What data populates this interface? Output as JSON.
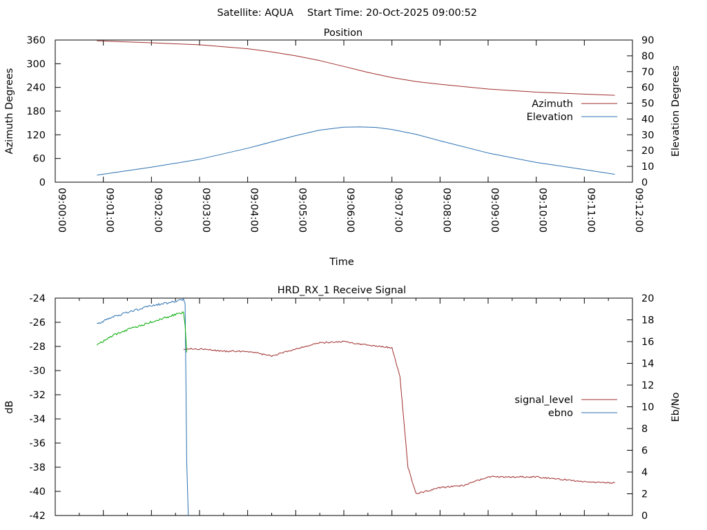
{
  "header": {
    "satellite_label": "Satellite: AQUA",
    "start_time_label": "Start Time: 20-Oct-2025 09:00:52"
  },
  "chart_data": [
    {
      "type": "line",
      "title": "Position",
      "xlabel": "Time",
      "ylabel": "Azimuth Degrees",
      "y2label": "Elevation Degrees",
      "xlim": [
        "09:00:00",
        "09:12:00"
      ],
      "x_ticks": [
        "09:00:00",
        "09:01:00",
        "09:02:00",
        "09:03:00",
        "09:04:00",
        "09:05:00",
        "09:06:00",
        "09:07:00",
        "09:08:00",
        "09:09:00",
        "09:10:00",
        "09:11:00",
        "09:12:00"
      ],
      "ylim": [
        0,
        360
      ],
      "y_ticks": [
        "0",
        "60",
        "120",
        "180",
        "240",
        "300",
        "360"
      ],
      "y2lim": [
        0,
        90
      ],
      "y2_ticks": [
        "0",
        "10",
        "20",
        "30",
        "40",
        "50",
        "60",
        "70",
        "80",
        "90"
      ],
      "grid": false,
      "legend_position": "right",
      "series": [
        {
          "name": "Azimuth",
          "axis": "left",
          "color": "#a02c2c",
          "x": [
            "09:00:52",
            "09:02:00",
            "09:03:00",
            "09:04:00",
            "09:04:30",
            "09:05:00",
            "09:05:30",
            "09:06:00",
            "09:06:30",
            "09:07:00",
            "09:07:30",
            "09:08:00",
            "09:09:00",
            "09:10:00",
            "09:11:00",
            "09:11:38"
          ],
          "values": [
            358,
            353,
            348,
            338,
            330,
            320,
            308,
            293,
            278,
            265,
            255,
            248,
            236,
            228,
            223,
            220
          ]
        },
        {
          "name": "Elevation",
          "axis": "right",
          "color": "#2a6fb0",
          "x": [
            "09:00:52",
            "09:02:00",
            "09:03:00",
            "09:04:00",
            "09:05:00",
            "09:05:30",
            "09:06:00",
            "09:06:20",
            "09:06:40",
            "09:07:00",
            "09:07:30",
            "09:08:00",
            "09:09:00",
            "09:10:00",
            "09:11:00",
            "09:11:38"
          ],
          "values": [
            4.5,
            9.5,
            14.5,
            21.5,
            29.5,
            33,
            34.8,
            35,
            34.7,
            33.4,
            30.3,
            26.2,
            18.5,
            12.5,
            8,
            5
          ]
        }
      ]
    },
    {
      "type": "line",
      "title": "HRD_RX_1 Receive Signal",
      "ylabel": "dB",
      "y2label": "Eb/No",
      "xlim": [
        "09:00:00",
        "09:12:00"
      ],
      "ylim": [
        -42,
        -24
      ],
      "y_ticks": [
        "-24",
        "-26",
        "-28",
        "-30",
        "-32",
        "-34",
        "-36",
        "-38",
        "-40",
        "-42"
      ],
      "y2lim": [
        0,
        20
      ],
      "y2_ticks": [
        "0",
        "2",
        "4",
        "6",
        "8",
        "10",
        "12",
        "14",
        "16",
        "18",
        "20"
      ],
      "grid": false,
      "legend_position": "right",
      "series": [
        {
          "name": "signal_level",
          "axis": "left",
          "color": "#a02c2c",
          "x": [
            "09:02:40",
            "09:03:00",
            "09:03:30",
            "09:04:00",
            "09:04:30",
            "09:05:00",
            "09:05:30",
            "09:06:00",
            "09:06:30",
            "09:07:00",
            "09:07:10",
            "09:07:20",
            "09:07:30",
            "09:08:00",
            "09:08:30",
            "09:09:00",
            "09:09:30",
            "09:10:00",
            "09:10:30",
            "09:11:00",
            "09:11:38"
          ],
          "values": [
            -28.2,
            -28.2,
            -28.4,
            -28.4,
            -28.8,
            -28.2,
            -27.7,
            -27.6,
            -27.9,
            -28.1,
            -30.5,
            -38,
            -40.2,
            -39.7,
            -39.5,
            -38.8,
            -38.8,
            -38.8,
            -39,
            -39.2,
            -39.3
          ]
        },
        {
          "name": "ebno",
          "axis": "right",
          "color": "#2a6fb0",
          "x": [
            "09:00:52",
            "09:01:10",
            "09:01:30",
            "09:02:00",
            "09:02:30",
            "09:02:40",
            "09:02:42",
            "09:02:44",
            "09:02:46"
          ],
          "values": [
            17.6,
            18.2,
            18.7,
            19.3,
            19.7,
            19.9,
            19.5,
            5,
            0
          ]
        },
        {
          "name": "",
          "axis": "right",
          "color": "#00aa00",
          "x": [
            "09:00:52",
            "09:01:10",
            "09:01:30",
            "09:02:00",
            "09:02:30",
            "09:02:40",
            "09:02:42",
            "09:02:44"
          ],
          "values": [
            15.7,
            16.5,
            17.1,
            17.8,
            18.5,
            18.7,
            17.5,
            15
          ]
        }
      ]
    }
  ]
}
